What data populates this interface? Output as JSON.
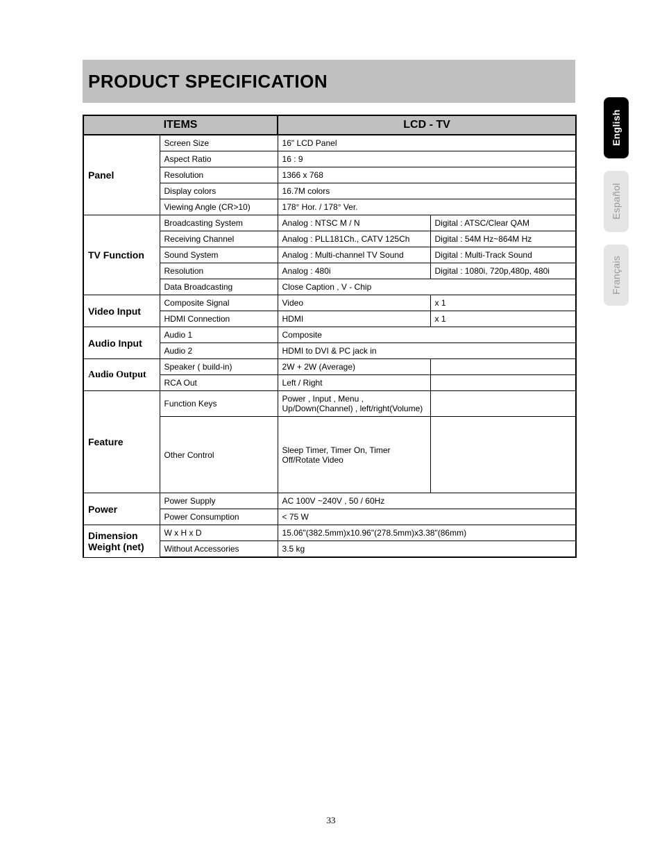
{
  "title": "PRODUCT SPECIFICATION",
  "page_number": "33",
  "language_tabs": {
    "active": "English",
    "inactive1": "Español",
    "inactive2": "Français"
  },
  "headers": {
    "items": "ITEMS",
    "lcdtv": "LCD - TV"
  },
  "panel": {
    "label": "Panel",
    "screen_size_k": "Screen Size",
    "screen_size_v": "16\" LCD Panel",
    "aspect_k": "Aspect Ratio",
    "aspect_v": "16 : 9",
    "res_k": "Resolution",
    "res_v": "1366 x 768",
    "colors_k": "Display colors",
    "colors_v": "16.7M colors",
    "angle_k": "Viewing Angle (CR>10)",
    "angle_v": "178° Hor. / 178° Ver."
  },
  "tvfn": {
    "label": "TV Function",
    "bs_k": "Broadcasting System",
    "bs_a": "Analog : NTSC   M / N",
    "bs_d": "Digital : ATSC/Clear QAM",
    "rc_k": "Receiving Channel",
    "rc_a": "Analog : PLL181Ch., CATV 125Ch",
    "rc_d": "Digital : 54M Hz~864M Hz",
    "ss_k": "Sound System",
    "ss_a": "Analog : Multi-channel TV Sound",
    "ss_d": "Digital : Multi-Track Sound",
    "res_k": "Resolution",
    "res_a": "Analog : 480i",
    "res_d": "Digital : 1080i, 720p,480p, 480i",
    "db_k": "Data Broadcasting",
    "db_v": "Close Caption , V - Chip"
  },
  "video": {
    "label": "Video Input",
    "cs_k": "Composite Signal",
    "cs_v": "Video",
    "cs_n": "x 1",
    "hdmi_k": "HDMI Connection",
    "hdmi_v": "HDMI",
    "hdmi_n": "x 1"
  },
  "audio_in": {
    "label": "Audio Input",
    "a1_k": "Audio 1",
    "a1_v": "Composite",
    "a2_k": "Audio 2",
    "a2_v": "HDMI to DVI & PC jack in"
  },
  "audio_out": {
    "label": "Audio Output",
    "spk_k": "Speaker ( build-in)",
    "spk_v": "2W + 2W (Average)",
    "rca_k": "RCA Out",
    "rca_v": "Left / Right"
  },
  "feature": {
    "label": "Feature",
    "fk_k": "Function Keys",
    "fk_v": "Power , Input , Menu , Up/Down(Channel) , left/right(Volume)",
    "oc_k": "Other Control",
    "oc_v": "Sleep Timer, Timer On, Timer Off/Rotate Video"
  },
  "power": {
    "label": "Power",
    "ps_k": "Power Supply",
    "ps_v": "AC 100V ~240V , 50 / 60Hz",
    "pc_k": "Power Consumption",
    "pc_v": "< 75 W"
  },
  "dim": {
    "label1": "Dimension",
    "label2": "Weight (net)",
    "whd_k": "W x H x D",
    "whd_v": "15.06\"(382.5mm)x10.96\"(278.5mm)x3.38\"(86mm)",
    "wa_k": "Without   Accessories",
    "wa_v": "3.5 kg"
  }
}
